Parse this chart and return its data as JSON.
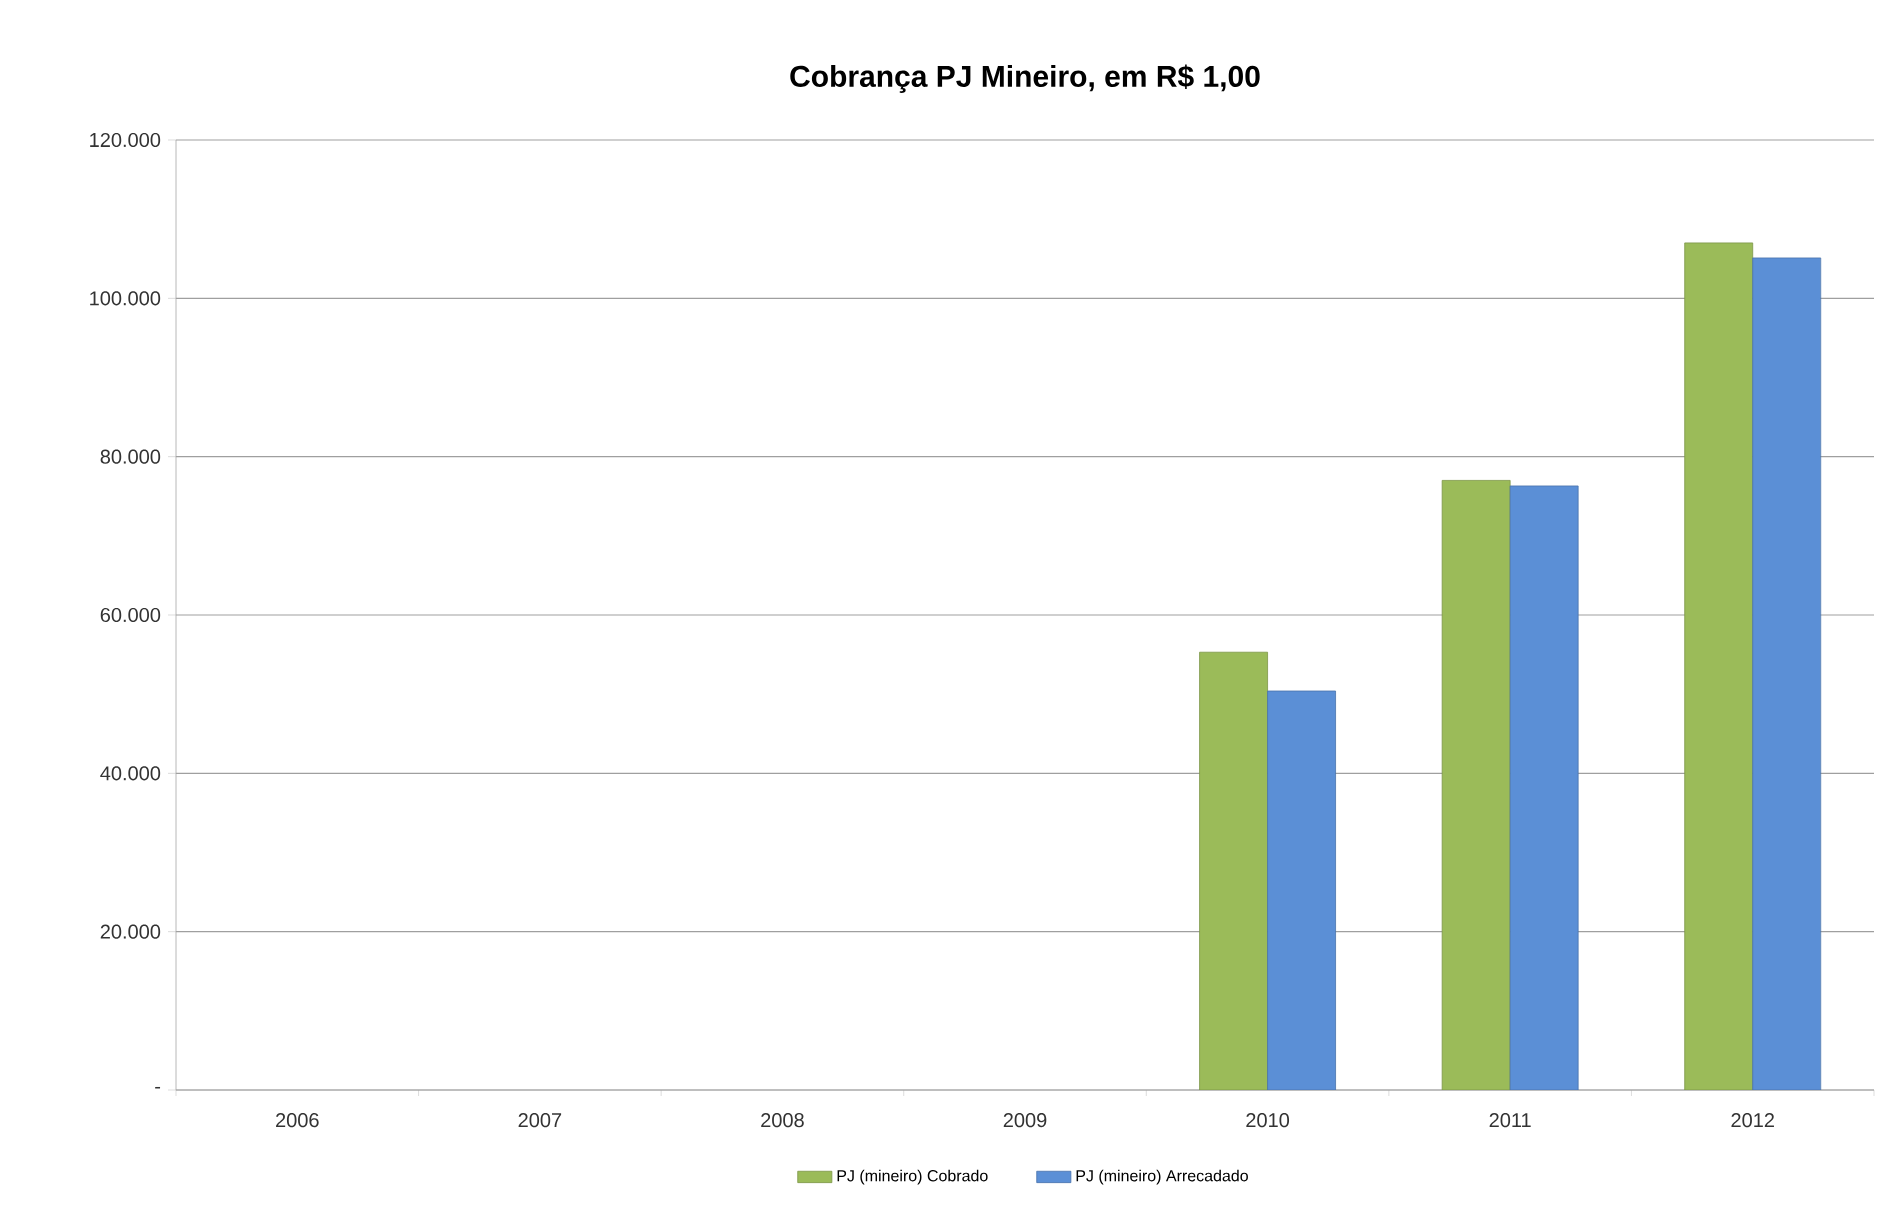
{
  "chart_data": {
    "type": "bar",
    "title": "Cobrança PJ Mineiro, em R$ 1,00",
    "categories": [
      "2006",
      "2007",
      "2008",
      "2009",
      "2010",
      "2011",
      "2012"
    ],
    "series": [
      {
        "name": "PJ (mineiro) Cobrado",
        "color": "#9bbb59",
        "values": [
          null,
          null,
          null,
          null,
          55300,
          77000,
          107000
        ]
      },
      {
        "name": "PJ (mineiro) Arrecadado",
        "color": "#5b8fd6",
        "values": [
          null,
          null,
          null,
          null,
          50400,
          76300,
          105100
        ]
      }
    ],
    "ylim": [
      0,
      120000
    ],
    "yticks": [
      {
        "value": 0,
        "label": "-"
      },
      {
        "value": 20000,
        "label": "20.000"
      },
      {
        "value": 40000,
        "label": "40.000"
      },
      {
        "value": 60000,
        "label": "60.000"
      },
      {
        "value": 80000,
        "label": "80.000"
      },
      {
        "value": 100000,
        "label": "100.000"
      },
      {
        "value": 120000,
        "label": "120.000"
      }
    ],
    "grid": "y",
    "legend": "bottom"
  }
}
